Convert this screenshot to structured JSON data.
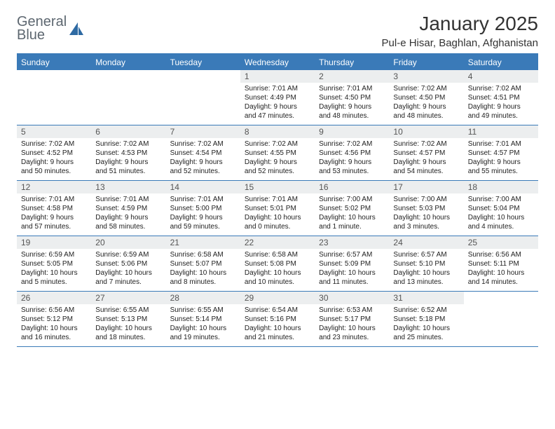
{
  "logo": {
    "line1": "General",
    "line2": "Blue"
  },
  "title": "January 2025",
  "location": "Pul-e Hisar, Baghlan, Afghanistan",
  "colors": {
    "header_blue": "#3a7ab8",
    "daynum_bg": "#eceeef",
    "text": "#222222",
    "title_text": "#333333",
    "logo_gray": "#5d6770",
    "background": "#ffffff"
  },
  "weekdays": [
    "Sunday",
    "Monday",
    "Tuesday",
    "Wednesday",
    "Thursday",
    "Friday",
    "Saturday"
  ],
  "weeks": [
    [
      {
        "num": "",
        "lines": []
      },
      {
        "num": "",
        "lines": []
      },
      {
        "num": "",
        "lines": []
      },
      {
        "num": "1",
        "lines": [
          "Sunrise: 7:01 AM",
          "Sunset: 4:49 PM",
          "Daylight: 9 hours",
          "and 47 minutes."
        ]
      },
      {
        "num": "2",
        "lines": [
          "Sunrise: 7:01 AM",
          "Sunset: 4:50 PM",
          "Daylight: 9 hours",
          "and 48 minutes."
        ]
      },
      {
        "num": "3",
        "lines": [
          "Sunrise: 7:02 AM",
          "Sunset: 4:50 PM",
          "Daylight: 9 hours",
          "and 48 minutes."
        ]
      },
      {
        "num": "4",
        "lines": [
          "Sunrise: 7:02 AM",
          "Sunset: 4:51 PM",
          "Daylight: 9 hours",
          "and 49 minutes."
        ]
      }
    ],
    [
      {
        "num": "5",
        "lines": [
          "Sunrise: 7:02 AM",
          "Sunset: 4:52 PM",
          "Daylight: 9 hours",
          "and 50 minutes."
        ]
      },
      {
        "num": "6",
        "lines": [
          "Sunrise: 7:02 AM",
          "Sunset: 4:53 PM",
          "Daylight: 9 hours",
          "and 51 minutes."
        ]
      },
      {
        "num": "7",
        "lines": [
          "Sunrise: 7:02 AM",
          "Sunset: 4:54 PM",
          "Daylight: 9 hours",
          "and 52 minutes."
        ]
      },
      {
        "num": "8",
        "lines": [
          "Sunrise: 7:02 AM",
          "Sunset: 4:55 PM",
          "Daylight: 9 hours",
          "and 52 minutes."
        ]
      },
      {
        "num": "9",
        "lines": [
          "Sunrise: 7:02 AM",
          "Sunset: 4:56 PM",
          "Daylight: 9 hours",
          "and 53 minutes."
        ]
      },
      {
        "num": "10",
        "lines": [
          "Sunrise: 7:02 AM",
          "Sunset: 4:57 PM",
          "Daylight: 9 hours",
          "and 54 minutes."
        ]
      },
      {
        "num": "11",
        "lines": [
          "Sunrise: 7:01 AM",
          "Sunset: 4:57 PM",
          "Daylight: 9 hours",
          "and 55 minutes."
        ]
      }
    ],
    [
      {
        "num": "12",
        "lines": [
          "Sunrise: 7:01 AM",
          "Sunset: 4:58 PM",
          "Daylight: 9 hours",
          "and 57 minutes."
        ]
      },
      {
        "num": "13",
        "lines": [
          "Sunrise: 7:01 AM",
          "Sunset: 4:59 PM",
          "Daylight: 9 hours",
          "and 58 minutes."
        ]
      },
      {
        "num": "14",
        "lines": [
          "Sunrise: 7:01 AM",
          "Sunset: 5:00 PM",
          "Daylight: 9 hours",
          "and 59 minutes."
        ]
      },
      {
        "num": "15",
        "lines": [
          "Sunrise: 7:01 AM",
          "Sunset: 5:01 PM",
          "Daylight: 10 hours",
          "and 0 minutes."
        ]
      },
      {
        "num": "16",
        "lines": [
          "Sunrise: 7:00 AM",
          "Sunset: 5:02 PM",
          "Daylight: 10 hours",
          "and 1 minute."
        ]
      },
      {
        "num": "17",
        "lines": [
          "Sunrise: 7:00 AM",
          "Sunset: 5:03 PM",
          "Daylight: 10 hours",
          "and 3 minutes."
        ]
      },
      {
        "num": "18",
        "lines": [
          "Sunrise: 7:00 AM",
          "Sunset: 5:04 PM",
          "Daylight: 10 hours",
          "and 4 minutes."
        ]
      }
    ],
    [
      {
        "num": "19",
        "lines": [
          "Sunrise: 6:59 AM",
          "Sunset: 5:05 PM",
          "Daylight: 10 hours",
          "and 5 minutes."
        ]
      },
      {
        "num": "20",
        "lines": [
          "Sunrise: 6:59 AM",
          "Sunset: 5:06 PM",
          "Daylight: 10 hours",
          "and 7 minutes."
        ]
      },
      {
        "num": "21",
        "lines": [
          "Sunrise: 6:58 AM",
          "Sunset: 5:07 PM",
          "Daylight: 10 hours",
          "and 8 minutes."
        ]
      },
      {
        "num": "22",
        "lines": [
          "Sunrise: 6:58 AM",
          "Sunset: 5:08 PM",
          "Daylight: 10 hours",
          "and 10 minutes."
        ]
      },
      {
        "num": "23",
        "lines": [
          "Sunrise: 6:57 AM",
          "Sunset: 5:09 PM",
          "Daylight: 10 hours",
          "and 11 minutes."
        ]
      },
      {
        "num": "24",
        "lines": [
          "Sunrise: 6:57 AM",
          "Sunset: 5:10 PM",
          "Daylight: 10 hours",
          "and 13 minutes."
        ]
      },
      {
        "num": "25",
        "lines": [
          "Sunrise: 6:56 AM",
          "Sunset: 5:11 PM",
          "Daylight: 10 hours",
          "and 14 minutes."
        ]
      }
    ],
    [
      {
        "num": "26",
        "lines": [
          "Sunrise: 6:56 AM",
          "Sunset: 5:12 PM",
          "Daylight: 10 hours",
          "and 16 minutes."
        ]
      },
      {
        "num": "27",
        "lines": [
          "Sunrise: 6:55 AM",
          "Sunset: 5:13 PM",
          "Daylight: 10 hours",
          "and 18 minutes."
        ]
      },
      {
        "num": "28",
        "lines": [
          "Sunrise: 6:55 AM",
          "Sunset: 5:14 PM",
          "Daylight: 10 hours",
          "and 19 minutes."
        ]
      },
      {
        "num": "29",
        "lines": [
          "Sunrise: 6:54 AM",
          "Sunset: 5:16 PM",
          "Daylight: 10 hours",
          "and 21 minutes."
        ]
      },
      {
        "num": "30",
        "lines": [
          "Sunrise: 6:53 AM",
          "Sunset: 5:17 PM",
          "Daylight: 10 hours",
          "and 23 minutes."
        ]
      },
      {
        "num": "31",
        "lines": [
          "Sunrise: 6:52 AM",
          "Sunset: 5:18 PM",
          "Daylight: 10 hours",
          "and 25 minutes."
        ]
      },
      {
        "num": "",
        "lines": []
      }
    ]
  ]
}
